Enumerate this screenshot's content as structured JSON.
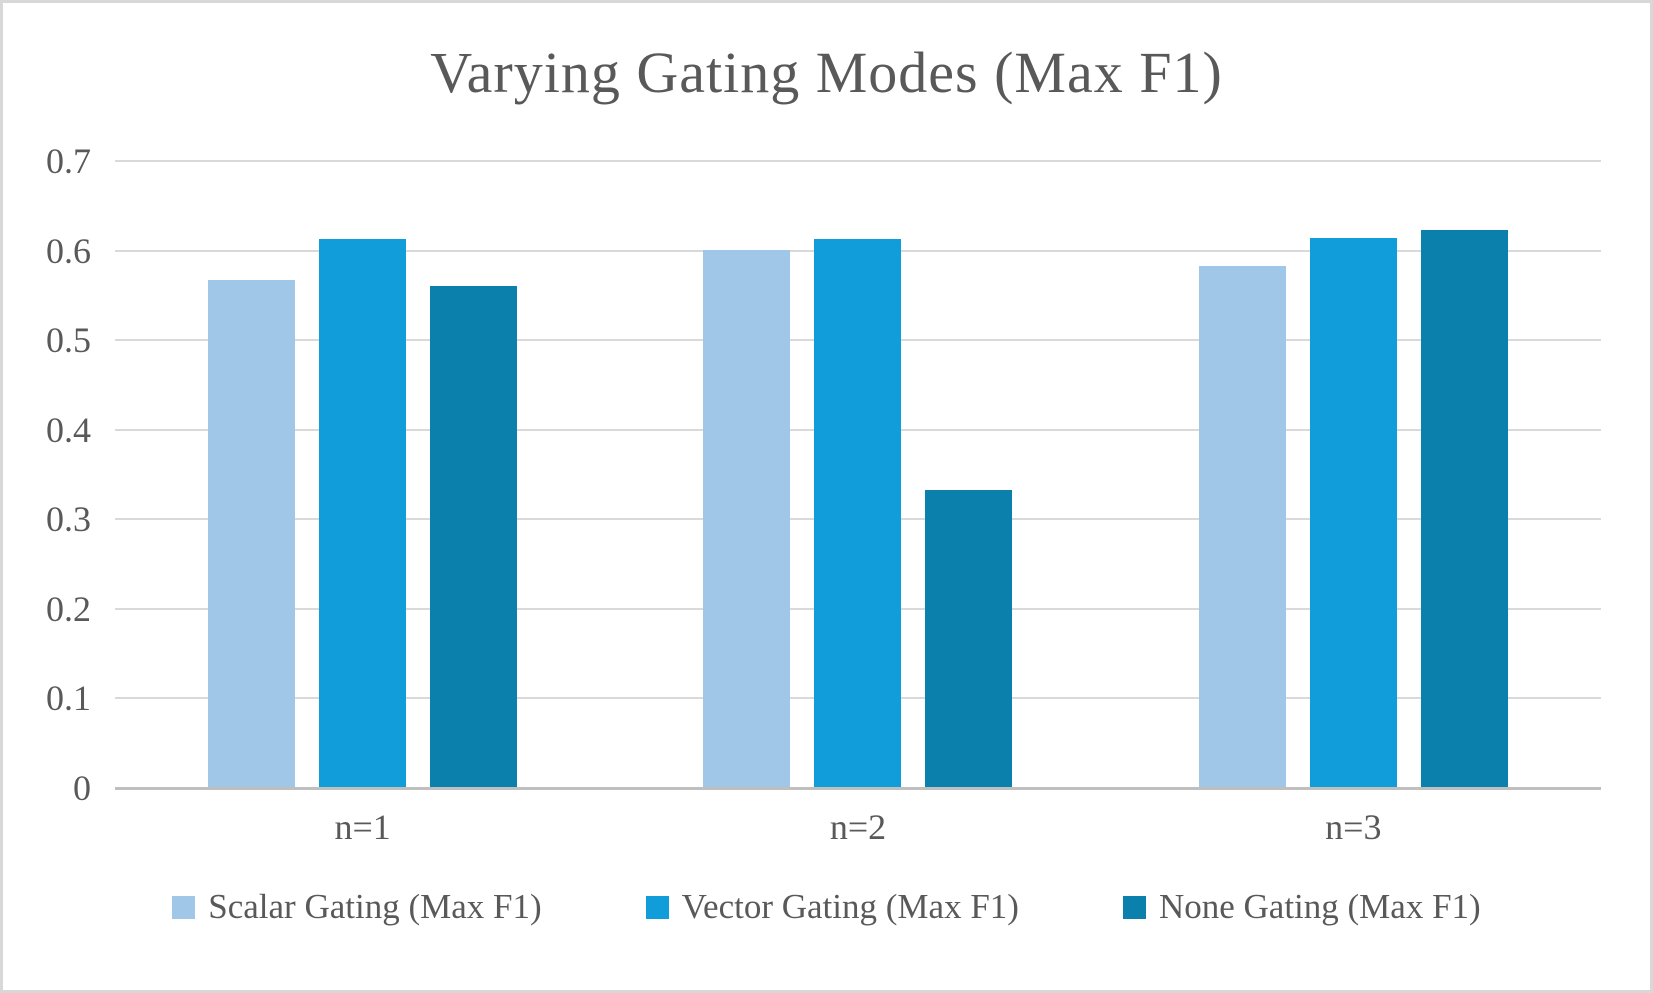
{
  "chart_data": {
    "type": "bar",
    "title": "Varying Gating Modes (Max F1)",
    "categories": [
      "n=1",
      "n=2",
      "n=3"
    ],
    "series": [
      {
        "name": "Scalar Gating (Max F1)",
        "color": "#A0C6E8",
        "values": [
          0.567,
          0.601,
          0.583
        ]
      },
      {
        "name": "Vector Gating (Max F1)",
        "color": "#109DD9",
        "values": [
          0.613,
          0.613,
          0.614
        ]
      },
      {
        "name": "None Gating (Max F1)",
        "color": "#0C80AD",
        "values": [
          0.56,
          0.333,
          0.623
        ]
      }
    ],
    "xlabel": "",
    "ylabel": "",
    "ylim": [
      0,
      0.7
    ],
    "yticks": [
      "0.7",
      "0.6",
      "0.5",
      "0.4",
      "0.3",
      "0.2",
      "0.1",
      "0"
    ],
    "grid": "horizontal",
    "legend_position": "bottom",
    "text_color": "#595959",
    "gridline_color": "#D9D9D9",
    "axis_line_color": "#BFBFBF",
    "frame_border_color": "#D8D8D8",
    "background_color": "#FFFFFF"
  }
}
